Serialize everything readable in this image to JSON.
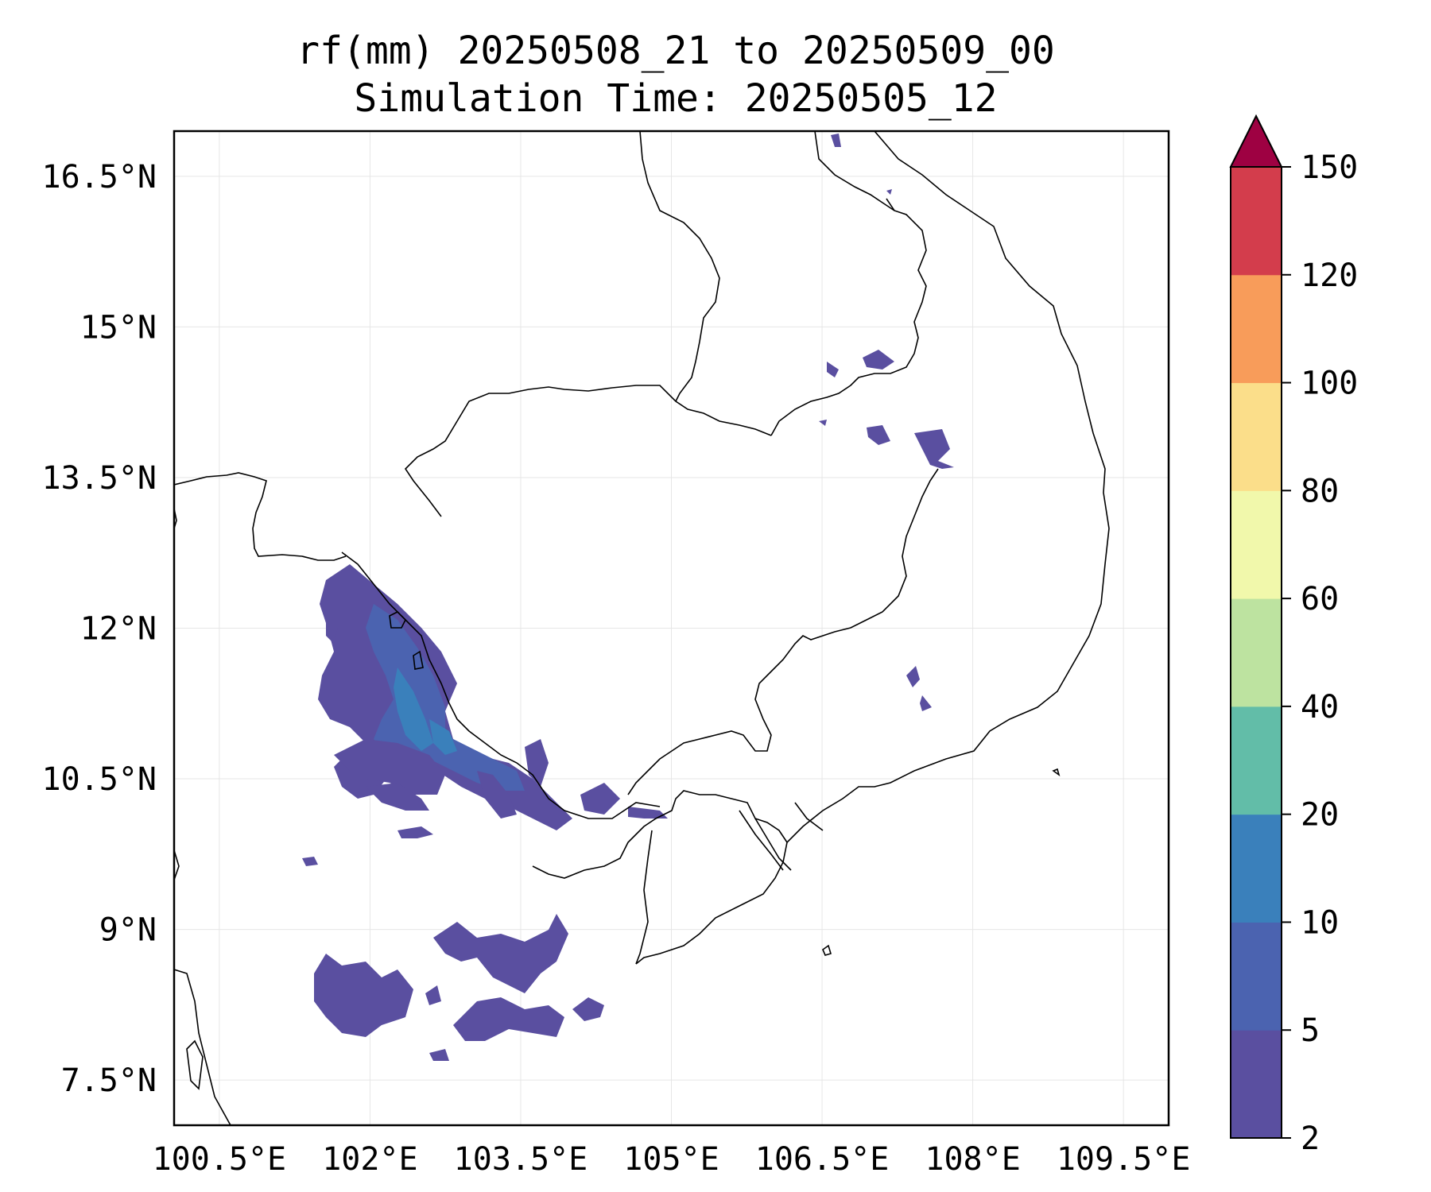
{
  "title": {
    "line1": "rf(mm) 20250508_21 to 20250509_00",
    "line2": "Simulation Time: 20250505_12"
  },
  "map": {
    "lat_ticks": [
      "16.5°N",
      "15°N",
      "13.5°N",
      "12°N",
      "10.5°N",
      "9°N",
      "7.5°N"
    ],
    "lon_ticks": [
      "100.5°E",
      "102°E",
      "103.5°E",
      "105°E",
      "106.5°E",
      "108°E",
      "109.5°E"
    ],
    "lon_range": [
      100.05,
      109.95
    ],
    "lat_range": [
      7.05,
      16.95
    ],
    "gridlines": true,
    "coastline_color": "#000000"
  },
  "colorbar": {
    "levels": [
      "2",
      "5",
      "10",
      "20",
      "40",
      "60",
      "80",
      "100",
      "120",
      "150"
    ],
    "colors": [
      "#5a4fa0",
      "#4b63b0",
      "#3a80bb",
      "#62bda8",
      "#bde3a0",
      "#f1f8ab",
      "#fbde8a",
      "#f89c5a",
      "#d33d4c"
    ],
    "extend_color": "#9e0142",
    "extend": "max"
  }
}
